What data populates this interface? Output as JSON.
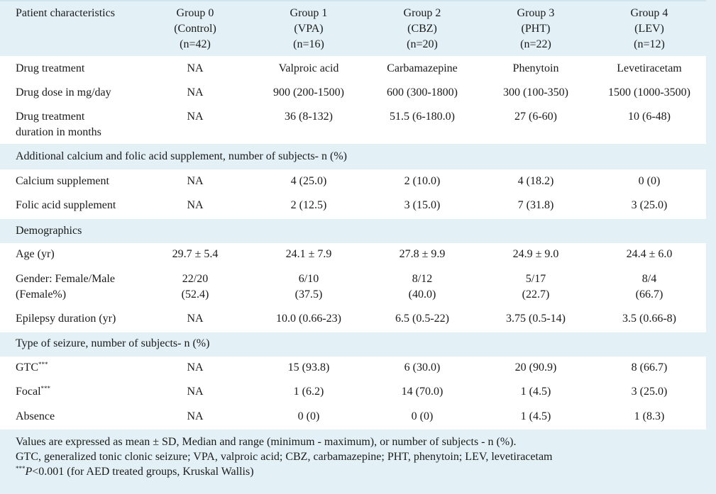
{
  "header": {
    "col0": "Patient characteristics",
    "groups": [
      {
        "name": "Group 0",
        "abbr": "(Control)",
        "n": "(n=42)"
      },
      {
        "name": "Group 1",
        "abbr": "(VPA)",
        "n": "(n=16)"
      },
      {
        "name": "Group 2",
        "abbr": "(CBZ)",
        "n": "(n=20)"
      },
      {
        "name": "Group 3",
        "abbr": "(PHT)",
        "n": "(n=22)"
      },
      {
        "name": "Group 4",
        "abbr": "(LEV)",
        "n": "(n=12)"
      }
    ]
  },
  "drug": {
    "treatment": {
      "label": "Drug treatment",
      "values": [
        "NA",
        "Valproic acid",
        "Carbamazepine",
        "Phenytoin",
        "Levetiracetam"
      ]
    },
    "dose": {
      "label": "Drug dose in mg/day",
      "values": [
        "NA",
        "900 (200-1500)",
        "600 (300-1800)",
        "300 (100-350)",
        "1500 (1000-3500)"
      ]
    },
    "duration": {
      "label_line1": "Drug treatment",
      "label_line2": "duration in months",
      "values": [
        "NA",
        "36 (8-132)",
        "51.5 (6-180.0)",
        "27 (6-60)",
        "10 (6-48)"
      ]
    }
  },
  "supplement": {
    "section_title": "Additional calcium and folic acid supplement, number of subjects- n (%)",
    "calcium": {
      "label": "Calcium supplement",
      "values": [
        "NA",
        "4 (25.0)",
        "2 (10.0)",
        "4 (18.2)",
        "0 (0)"
      ]
    },
    "folic": {
      "label": "Folic acid supplement",
      "values": [
        "NA",
        "2 (12.5)",
        "3 (15.0)",
        "7 (31.8)",
        "3 (25.0)"
      ]
    }
  },
  "demographics": {
    "section_title": "Demographics",
    "age": {
      "label": "Age (yr)",
      "values": [
        "29.7 ± 5.4",
        "24.1 ± 7.9",
        "27.8 ± 9.9",
        "24.9 ± 9.0",
        "24.4 ± 6.0"
      ]
    },
    "gender": {
      "label_line1": "Gender: Female/Male",
      "label_line2": "(Female%)",
      "line1": [
        "22/20",
        "6/10",
        "8/12",
        "5/17",
        "8/4"
      ],
      "line2": [
        "(52.4)",
        "(37.5)",
        "(40.0)",
        "(22.7)",
        "(66.7)"
      ]
    },
    "epilepsy": {
      "label": "Epilepsy duration (yr)",
      "values": [
        "NA",
        "10.0 (0.66-23)",
        "6.5 (0.5-22)",
        "3.75 (0.5-14)",
        "3.5 (0.66-8)"
      ]
    }
  },
  "seizure": {
    "section_title": "Type of seizure, number of subjects- n (%)",
    "gtc": {
      "label": "GTC",
      "sup": "***",
      "values": [
        "NA",
        "15 (93.8)",
        "6 (30.0)",
        "20 (90.9)",
        "8 (66.7)"
      ]
    },
    "focal": {
      "label": "Focal",
      "sup": "***",
      "values": [
        "NA",
        "1 (6.2)",
        "14 (70.0)",
        "1 (4.5)",
        "3 (25.0)"
      ]
    },
    "absence": {
      "label": "Absence",
      "values": [
        "NA",
        "0 (0)",
        "0 (0)",
        "1 (4.5)",
        "1 (8.3)"
      ]
    }
  },
  "footnotes": {
    "line1": "Values are expressed as mean ± SD, Median and range (minimum - maximum), or number of subjects - n (%).",
    "line2": "GTC, generalized tonic clonic seizure; VPA, valproic acid; CBZ, carbamazepine; PHT, phenytoin; LEV, levetiracetam",
    "line3_sup": "***",
    "line3_p": "P",
    "line3_rest": "<0.001 (for AED treated groups, Kruskal Wallis)"
  }
}
